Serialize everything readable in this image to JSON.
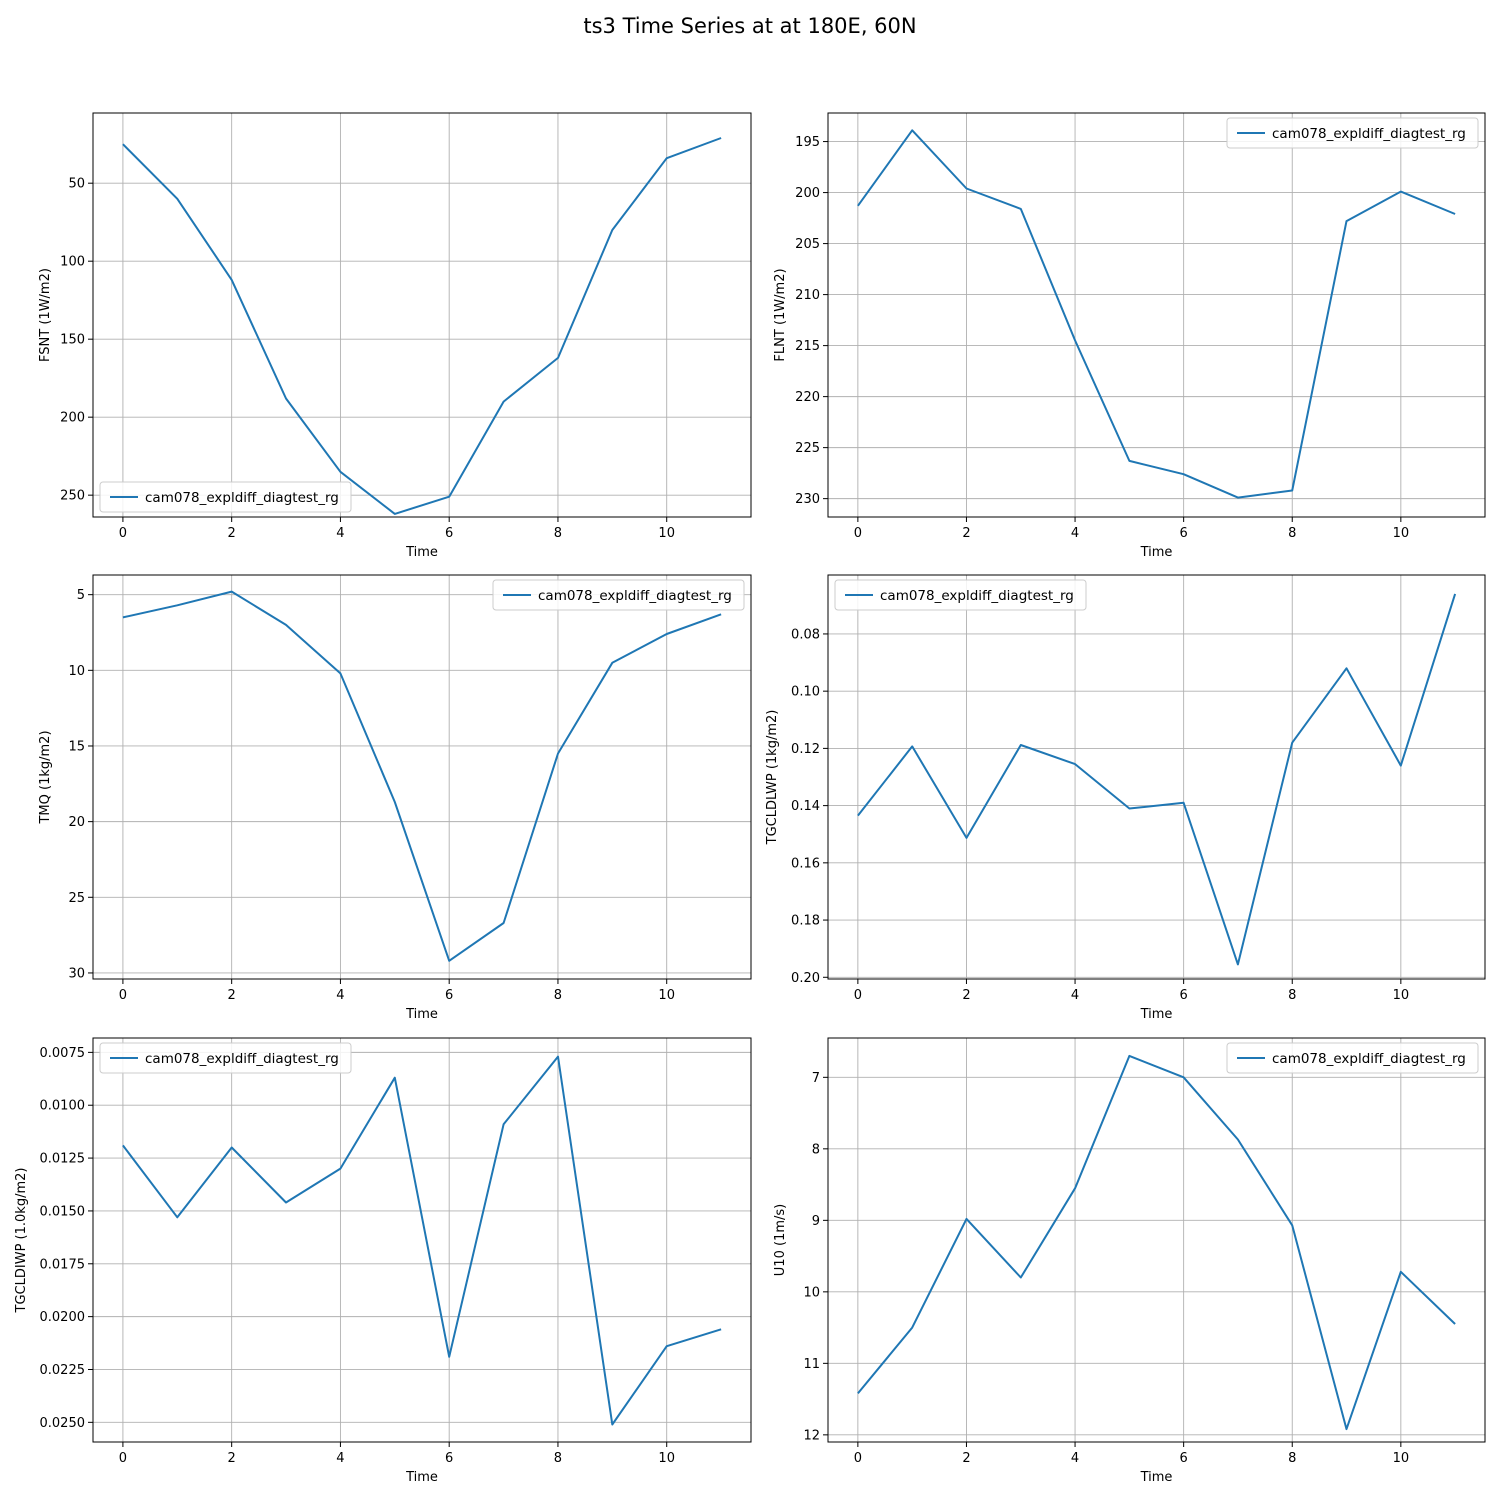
{
  "figure": {
    "title": "ts3 Time Series at at 180E, 60N",
    "line_color": "#1f77b4",
    "grid": true
  },
  "chart_data": [
    {
      "type": "line",
      "xlabel": "Time",
      "ylabel": "FSNT (1W/m2)",
      "y_inverted": true,
      "xlim": [
        -0.55,
        11.55
      ],
      "ylim": [
        264,
        5
      ],
      "xticks": [
        0,
        2,
        4,
        6,
        8,
        10
      ],
      "yticks": [
        50,
        100,
        150,
        200,
        250
      ],
      "legend": "lower left",
      "x": [
        0,
        1,
        2,
        3,
        4,
        5,
        6,
        7,
        8,
        9,
        10,
        11
      ],
      "series": [
        {
          "name": "cam078_expldiff_diagtest_rg",
          "values": [
            25,
            60,
            112,
            188,
            235,
            262,
            251,
            190,
            162,
            80,
            34,
            21
          ]
        }
      ]
    },
    {
      "type": "line",
      "xlabel": "Time",
      "ylabel": "FLNT (1W/m2)",
      "y_inverted": true,
      "xlim": [
        -0.55,
        11.55
      ],
      "ylim": [
        231.8,
        192.2
      ],
      "xticks": [
        0,
        2,
        4,
        6,
        8,
        10
      ],
      "yticks": [
        195,
        200,
        205,
        210,
        215,
        220,
        225,
        230
      ],
      "legend": "upper right",
      "x": [
        0,
        1,
        2,
        3,
        4,
        5,
        6,
        7,
        8,
        9,
        10,
        11
      ],
      "series": [
        {
          "name": "cam078_expldiff_diagtest_rg",
          "values": [
            201.3,
            193.9,
            199.6,
            201.6,
            214.5,
            226.3,
            227.6,
            229.9,
            229.2,
            202.8,
            199.9,
            202.1
          ]
        }
      ]
    },
    {
      "type": "line",
      "xlabel": "Time",
      "ylabel": "TMQ (1kg/m2)",
      "y_inverted": true,
      "xlim": [
        -0.55,
        11.55
      ],
      "ylim": [
        30.4,
        3.7
      ],
      "xticks": [
        0,
        2,
        4,
        6,
        8,
        10
      ],
      "yticks": [
        5,
        10,
        15,
        20,
        25,
        30
      ],
      "legend": "upper right",
      "x": [
        0,
        1,
        2,
        3,
        4,
        5,
        6,
        7,
        8,
        9,
        10,
        11
      ],
      "series": [
        {
          "name": "cam078_expldiff_diagtest_rg",
          "values": [
            6.5,
            5.7,
            4.8,
            7.0,
            10.2,
            18.7,
            29.2,
            26.7,
            15.5,
            9.5,
            7.6,
            6.3
          ]
        }
      ]
    },
    {
      "type": "line",
      "xlabel": "Time",
      "ylabel": "TGCLDLWP (1kg/m2)",
      "y_inverted": true,
      "xlim": [
        -0.55,
        11.55
      ],
      "ylim": [
        0.2006,
        0.0594
      ],
      "xticks": [
        0,
        2,
        4,
        6,
        8,
        10
      ],
      "yticks": [
        0.08,
        0.1,
        0.12,
        0.14,
        0.16,
        0.18,
        0.2
      ],
      "ytick_labels": [
        "0.08",
        "0.10",
        "0.12",
        "0.14",
        "0.16",
        "0.18",
        "0.20"
      ],
      "legend": "upper left",
      "x": [
        0,
        1,
        2,
        3,
        4,
        5,
        6,
        7,
        8,
        9,
        10,
        11
      ],
      "series": [
        {
          "name": "cam078_expldiff_diagtest_rg",
          "values": [
            0.1435,
            0.1193,
            0.1513,
            0.1188,
            0.1255,
            0.141,
            0.139,
            0.1955,
            0.118,
            0.092,
            0.126,
            0.066
          ]
        }
      ]
    },
    {
      "type": "line",
      "xlabel": "Time",
      "ylabel": "TGCLDIWP (1.0kg/m2)",
      "y_inverted": true,
      "xlim": [
        -0.55,
        11.55
      ],
      "ylim": [
        0.02593,
        0.00682
      ],
      "xticks": [
        0,
        2,
        4,
        6,
        8,
        10
      ],
      "yticks": [
        0.0075,
        0.01,
        0.0125,
        0.015,
        0.0175,
        0.02,
        0.0225,
        0.025
      ],
      "ytick_labels": [
        "0.0075",
        "0.0100",
        "0.0125",
        "0.0150",
        "0.0175",
        "0.0200",
        "0.0225",
        "0.0250"
      ],
      "legend": "upper left",
      "x": [
        0,
        1,
        2,
        3,
        4,
        5,
        6,
        7,
        8,
        9,
        10,
        11
      ],
      "series": [
        {
          "name": "cam078_expldiff_diagtest_rg",
          "values": [
            0.0119,
            0.0153,
            0.012,
            0.0146,
            0.013,
            0.0087,
            0.0219,
            0.0109,
            0.0077,
            0.0251,
            0.0214,
            0.0206
          ]
        }
      ]
    },
    {
      "type": "line",
      "xlabel": "Time",
      "ylabel": "U10 (1m/s)",
      "y_inverted": true,
      "xlim": [
        -0.55,
        11.55
      ],
      "ylim": [
        12.1,
        6.45
      ],
      "xticks": [
        0,
        2,
        4,
        6,
        8,
        10
      ],
      "yticks": [
        7,
        8,
        9,
        10,
        11,
        12
      ],
      "legend": "upper right",
      "x": [
        0,
        1,
        2,
        3,
        4,
        5,
        6,
        7,
        8,
        9,
        10,
        11
      ],
      "series": [
        {
          "name": "cam078_expldiff_diagtest_rg",
          "values": [
            11.42,
            10.5,
            8.98,
            9.8,
            8.55,
            6.7,
            7.0,
            7.87,
            9.07,
            11.92,
            9.72,
            10.45
          ]
        }
      ]
    }
  ]
}
